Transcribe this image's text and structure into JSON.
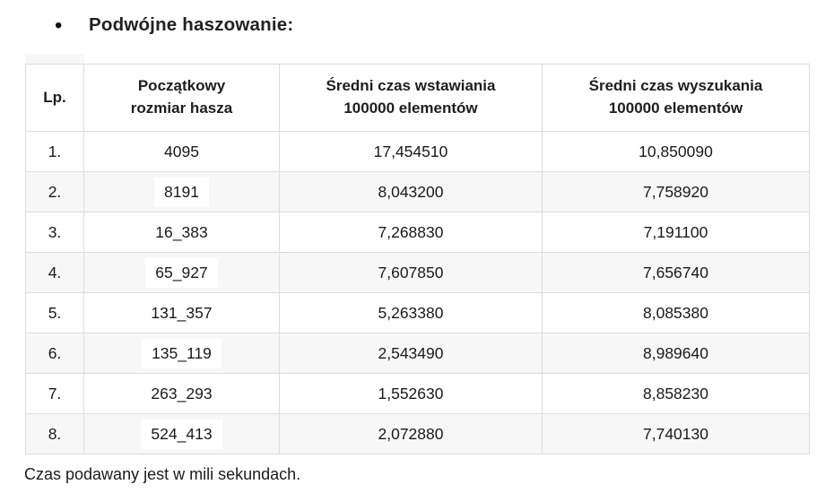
{
  "title": {
    "bullet": "•",
    "text": "Podwójne haszowanie:"
  },
  "table": {
    "headers": [
      {
        "label": "Lp."
      },
      {
        "label": "Początkowy\nrozmiar hasza"
      },
      {
        "label": "Średni czas wstawiania\n100000 elementów"
      },
      {
        "label": "Średni czas wyszukania\n100000 elementów"
      }
    ],
    "rows": [
      {
        "lp": "1.",
        "size": "4095",
        "insert_time": "17,454510",
        "search_time": "10,850090",
        "size_highlight": false
      },
      {
        "lp": "2.",
        "size": "8191",
        "insert_time": "8,043200",
        "search_time": "7,758920",
        "size_highlight": true
      },
      {
        "lp": "3.",
        "size": "16_383",
        "insert_time": "7,268830",
        "search_time": "7,191100",
        "size_highlight": false
      },
      {
        "lp": "4.",
        "size": "65_927",
        "insert_time": "7,607850",
        "search_time": "7,656740",
        "size_highlight": true
      },
      {
        "lp": "5.",
        "size": "131_357",
        "insert_time": "5,263380",
        "search_time": "8,085380",
        "size_highlight": false
      },
      {
        "lp": "6.",
        "size": "135_119",
        "insert_time": "2,543490",
        "search_time": "8,989640",
        "size_highlight": true
      },
      {
        "lp": "7.",
        "size": "263_293",
        "insert_time": "1,552630",
        "search_time": "8,858230",
        "size_highlight": false
      },
      {
        "lp": "8.",
        "size": "524_413",
        "insert_time": "2,072880",
        "search_time": "7,740130",
        "size_highlight": true
      }
    ]
  },
  "footer": {
    "note": "Czas podawany jest w mili sekundach."
  },
  "colors": {
    "row_stripe": "#f7f7f7",
    "border": "#dcdcdc",
    "text": "#1f1f1f",
    "value_highlight": "#ffffff"
  }
}
